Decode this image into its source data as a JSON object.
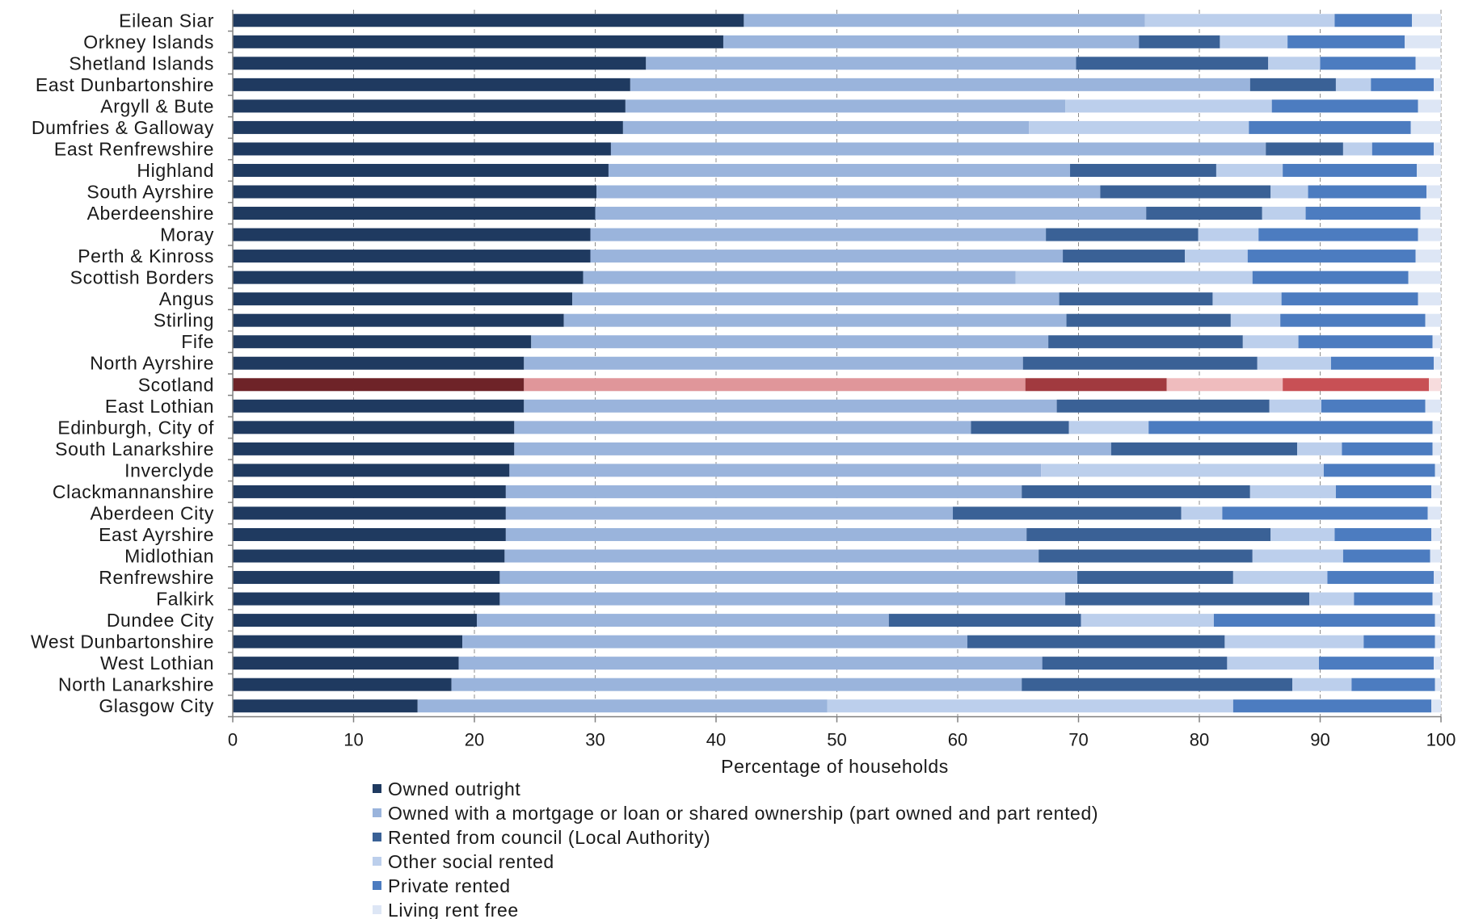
{
  "chart_data": {
    "type": "bar",
    "orientation": "horizontal",
    "stacked": true,
    "title": "",
    "xlabel": "Percentage of households",
    "ylabel": "",
    "xlim": [
      0,
      100
    ],
    "xticks": [
      0,
      10,
      20,
      30,
      40,
      50,
      60,
      70,
      80,
      90,
      100
    ],
    "grid": "vertical dashed",
    "legend_position": "bottom",
    "highlight_category": "Scotland",
    "categories": [
      "Eilean Siar",
      "Orkney Islands",
      "Shetland Islands",
      "East Dunbartonshire",
      "Argyll & Bute",
      "Dumfries & Galloway",
      "East Renfrewshire",
      "Highland",
      "South Ayrshire",
      "Aberdeenshire",
      "Moray",
      "Perth & Kinross",
      "Scottish Borders",
      "Angus",
      "Stirling",
      "Fife",
      "North Ayrshire",
      "Scotland",
      "East Lothian",
      "Edinburgh, City of",
      "South Lanarkshire",
      "Inverclyde",
      "Clackmannanshire",
      "Aberdeen City",
      "East Ayrshire",
      "Midlothian",
      "Renfrewshire",
      "Falkirk",
      "Dundee City",
      "West Dunbartonshire",
      "West Lothian",
      "North Lanarkshire",
      "Glasgow City"
    ],
    "series": [
      {
        "name": "Owned outright",
        "color": "#1f3a60",
        "highlight_color": "#6e2328",
        "values": [
          42.3,
          40.6,
          34.2,
          32.9,
          32.5,
          32.3,
          31.3,
          31.1,
          30.1,
          30.0,
          29.6,
          29.6,
          29.0,
          28.1,
          27.4,
          24.7,
          24.1,
          24.1,
          24.1,
          23.3,
          23.3,
          22.9,
          22.6,
          22.6,
          22.6,
          22.5,
          22.1,
          22.1,
          20.2,
          19.0,
          18.7,
          18.1,
          15.3
        ]
      },
      {
        "name": "Owned with a mortgage or loan or shared ownership (part owned and part rented)",
        "color": "#9ab4dc",
        "highlight_color": "#e0969a",
        "values": [
          33.2,
          34.4,
          35.6,
          51.3,
          36.4,
          33.6,
          54.2,
          38.2,
          41.7,
          45.6,
          37.7,
          39.1,
          35.8,
          40.3,
          41.6,
          42.8,
          41.3,
          41.5,
          44.1,
          37.8,
          49.4,
          44.0,
          42.7,
          37.0,
          43.1,
          44.2,
          47.8,
          46.8,
          34.1,
          41.8,
          48.3,
          47.2,
          33.9
        ]
      },
      {
        "name": "Rented from council (Local Authority)",
        "color": "#3a6196",
        "highlight_color": "#a13a3f",
        "values": [
          0.0,
          6.7,
          15.9,
          7.1,
          0.0,
          0.0,
          6.4,
          12.1,
          14.1,
          9.6,
          12.6,
          10.1,
          0.0,
          12.7,
          13.6,
          16.1,
          19.4,
          11.7,
          17.6,
          8.1,
          15.4,
          0.0,
          18.9,
          18.9,
          20.2,
          17.7,
          12.9,
          20.2,
          15.9,
          21.3,
          15.3,
          22.4,
          0.0
        ]
      },
      {
        "name": "Other social rented",
        "color": "#bccfec",
        "highlight_color": "#efbcbe",
        "values": [
          15.7,
          5.6,
          4.3,
          2.9,
          17.1,
          18.2,
          2.4,
          5.5,
          3.1,
          3.6,
          5.0,
          5.2,
          19.6,
          5.7,
          4.1,
          4.6,
          6.1,
          9.6,
          4.3,
          6.6,
          3.7,
          23.4,
          7.1,
          3.4,
          5.3,
          7.5,
          7.8,
          3.7,
          11.0,
          11.5,
          7.6,
          4.9,
          33.6
        ]
      },
      {
        "name": "Private rented",
        "color": "#4c7cc0",
        "highlight_color": "#c85055",
        "values": [
          6.4,
          9.7,
          7.9,
          5.2,
          12.1,
          13.4,
          5.1,
          11.1,
          9.8,
          9.5,
          13.2,
          13.9,
          12.9,
          11.3,
          12.0,
          11.1,
          8.5,
          12.1,
          8.6,
          23.5,
          7.5,
          9.2,
          7.9,
          17.0,
          8.0,
          7.2,
          8.8,
          6.5,
          18.3,
          5.9,
          9.5,
          6.9,
          16.4
        ]
      },
      {
        "name": "Living rent free",
        "color": "#dde6f5",
        "highlight_color": "#f7dcdd",
        "values": [
          2.4,
          3.0,
          2.1,
          0.6,
          1.9,
          2.5,
          0.6,
          2.0,
          1.2,
          1.7,
          1.9,
          2.1,
          2.7,
          1.9,
          1.3,
          0.7,
          0.6,
          1.0,
          1.3,
          0.7,
          0.7,
          0.5,
          0.8,
          1.1,
          0.8,
          0.9,
          0.6,
          0.7,
          0.5,
          0.5,
          0.6,
          0.5,
          0.8
        ]
      }
    ]
  }
}
